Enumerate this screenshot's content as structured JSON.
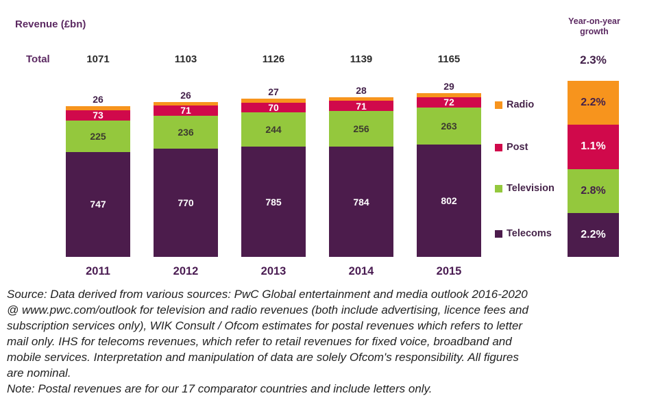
{
  "title": "Revenue (£bn)",
  "totals_row": {
    "label": "Total"
  },
  "growth_column": {
    "header": "Year-on-year growth",
    "total": "2.3%"
  },
  "chart_data": {
    "type": "stacked-bar",
    "title": "Revenue (£bn)",
    "ylabel": "Revenue (£bn)",
    "categories": [
      "2011",
      "2012",
      "2013",
      "2014",
      "2015"
    ],
    "totals": [
      1071,
      1103,
      1126,
      1139,
      1165
    ],
    "series": [
      {
        "name": "Radio",
        "color": "#F7941D",
        "values": [
          26,
          26,
          27,
          28,
          29
        ],
        "yoy_growth": "2.2%"
      },
      {
        "name": "Post",
        "color": "#D0094B",
        "values": [
          73,
          71,
          70,
          71,
          72
        ],
        "yoy_growth": "1.1%"
      },
      {
        "name": "Television",
        "color": "#94C83D",
        "values": [
          225,
          236,
          244,
          256,
          263
        ],
        "yoy_growth": "2.8%"
      },
      {
        "name": "Telecoms",
        "color": "#4C1C4C",
        "values": [
          747,
          770,
          785,
          784,
          802
        ],
        "yoy_growth": "2.2%"
      }
    ],
    "yoy_total": "2.3%",
    "legend_position": "right",
    "value_labels": true,
    "gridlines": false
  },
  "source": {
    "lines": [
      "Source: Data derived from various sources:  PwC Global entertainment and media outlook 2016-2020",
      "@ www.pwc.com/outlook for television and radio revenues (both include advertising, licence fees and",
      "subscription services only), WIK Consult / Ofcom estimates for postal revenues which refers to letter",
      "mail only. IHS for telecoms revenues, which refer to retail revenues for fixed voice, broadband and",
      "mobile services. Interpretation and manipulation of data are solely Ofcom's responsibility. All figures",
      "are nominal."
    ]
  },
  "note": {
    "text": "Note: Postal revenues are for our 17 comparator countries and include letters only."
  }
}
